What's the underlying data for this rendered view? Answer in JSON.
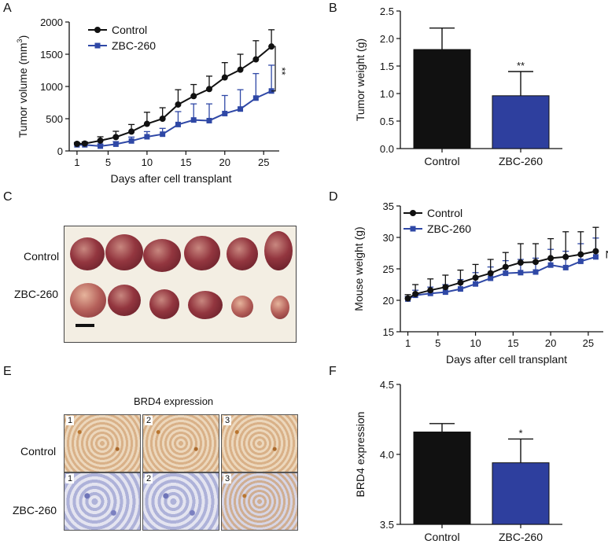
{
  "panels": {
    "A": "A",
    "B": "B",
    "C": "C",
    "D": "D",
    "E": "E",
    "F": "F"
  },
  "colors": {
    "control": "#111111",
    "zbc": "#2f48a6",
    "bar_control": "#111111",
    "bar_zbc": "#2e3f9e"
  },
  "chart_data": [
    {
      "id": "A",
      "type": "line",
      "ylabel": "Tumor volume (mm3)",
      "xlabel": "Days after cell transplant",
      "xlim": [
        0,
        27
      ],
      "ylim": [
        0,
        2000
      ],
      "xticks": [
        1,
        5,
        10,
        15,
        20,
        25
      ],
      "yticks": [
        0,
        500,
        1000,
        1500,
        2000
      ],
      "series": [
        {
          "name": "Control",
          "x": [
            1,
            2,
            4,
            6,
            8,
            10,
            12,
            14,
            16,
            18,
            20,
            22,
            24,
            26
          ],
          "values": [
            110,
            115,
            160,
            215,
            300,
            420,
            500,
            720,
            850,
            960,
            1140,
            1260,
            1420,
            1620
          ],
          "err": [
            20,
            25,
            60,
            90,
            110,
            180,
            170,
            230,
            180,
            200,
            230,
            240,
            290,
            260
          ]
        },
        {
          "name": "ZBC-260",
          "x": [
            1,
            2,
            4,
            6,
            8,
            10,
            12,
            14,
            16,
            18,
            20,
            22,
            24,
            26
          ],
          "values": [
            95,
            95,
            75,
            105,
            155,
            220,
            260,
            410,
            480,
            470,
            580,
            650,
            820,
            930
          ],
          "err": [
            15,
            20,
            30,
            40,
            60,
            80,
            90,
            200,
            250,
            260,
            280,
            300,
            380,
            400
          ]
        }
      ],
      "significance": "**"
    },
    {
      "id": "B",
      "type": "bar",
      "ylabel": "Tumor weight (g)",
      "categories": [
        "Control",
        "ZBC-260"
      ],
      "values": [
        1.8,
        0.96
      ],
      "err": [
        0.39,
        0.44
      ],
      "ylim": [
        0,
        2.5
      ],
      "yticks": [
        "0.0",
        "0.5",
        "1.0",
        "1.5",
        "2.0",
        "2.5"
      ],
      "annotation": "**"
    },
    {
      "id": "D",
      "type": "line",
      "ylabel": "Mouse weight (g)",
      "xlabel": "Days after cell transplant",
      "xlim": [
        0,
        27
      ],
      "ylim": [
        15,
        35
      ],
      "xticks": [
        1,
        5,
        10,
        15,
        20,
        25
      ],
      "yticks": [
        15,
        20,
        25,
        30,
        35
      ],
      "series": [
        {
          "name": "Control",
          "x": [
            1,
            2,
            4,
            6,
            8,
            10,
            12,
            14,
            16,
            18,
            20,
            22,
            24,
            26
          ],
          "values": [
            20.3,
            21.0,
            21.6,
            22.1,
            22.8,
            23.6,
            24.3,
            25.3,
            26.0,
            26.1,
            26.7,
            26.9,
            27.3,
            27.8
          ],
          "err": [
            0.6,
            1.5,
            1.8,
            1.9,
            2.0,
            2.1,
            2.2,
            2.3,
            3.0,
            2.9,
            3.1,
            4.0,
            3.6,
            3.8
          ]
        },
        {
          "name": "ZBC-260",
          "x": [
            1,
            2,
            4,
            6,
            8,
            10,
            12,
            14,
            16,
            18,
            20,
            22,
            24,
            26
          ],
          "values": [
            20.2,
            20.8,
            21.1,
            21.3,
            21.8,
            22.6,
            23.5,
            24.3,
            24.4,
            24.5,
            25.6,
            25.2,
            26.2,
            26.9
          ],
          "err": [
            0.4,
            0.8,
            1.0,
            1.2,
            1.5,
            1.8,
            1.8,
            2.0,
            2.1,
            2.2,
            2.5,
            2.6,
            2.8,
            3.0
          ]
        }
      ],
      "annotation": "NS"
    },
    {
      "id": "F",
      "type": "bar",
      "ylabel": "BRD4 expression",
      "categories": [
        "Control",
        "ZBC-260"
      ],
      "values": [
        4.16,
        3.94
      ],
      "err": [
        0.06,
        0.17
      ],
      "ylim": [
        3.5,
        4.5
      ],
      "yticks": [
        "3.5",
        "4.0",
        "4.5"
      ],
      "annotation": "*"
    }
  ],
  "photo": {
    "rows": [
      "Control",
      "ZBC-260"
    ]
  },
  "ihc": {
    "title": "BRD4 expression",
    "rows": [
      "Control",
      "ZBC-260"
    ],
    "numbers": [
      "1",
      "2",
      "3"
    ]
  }
}
